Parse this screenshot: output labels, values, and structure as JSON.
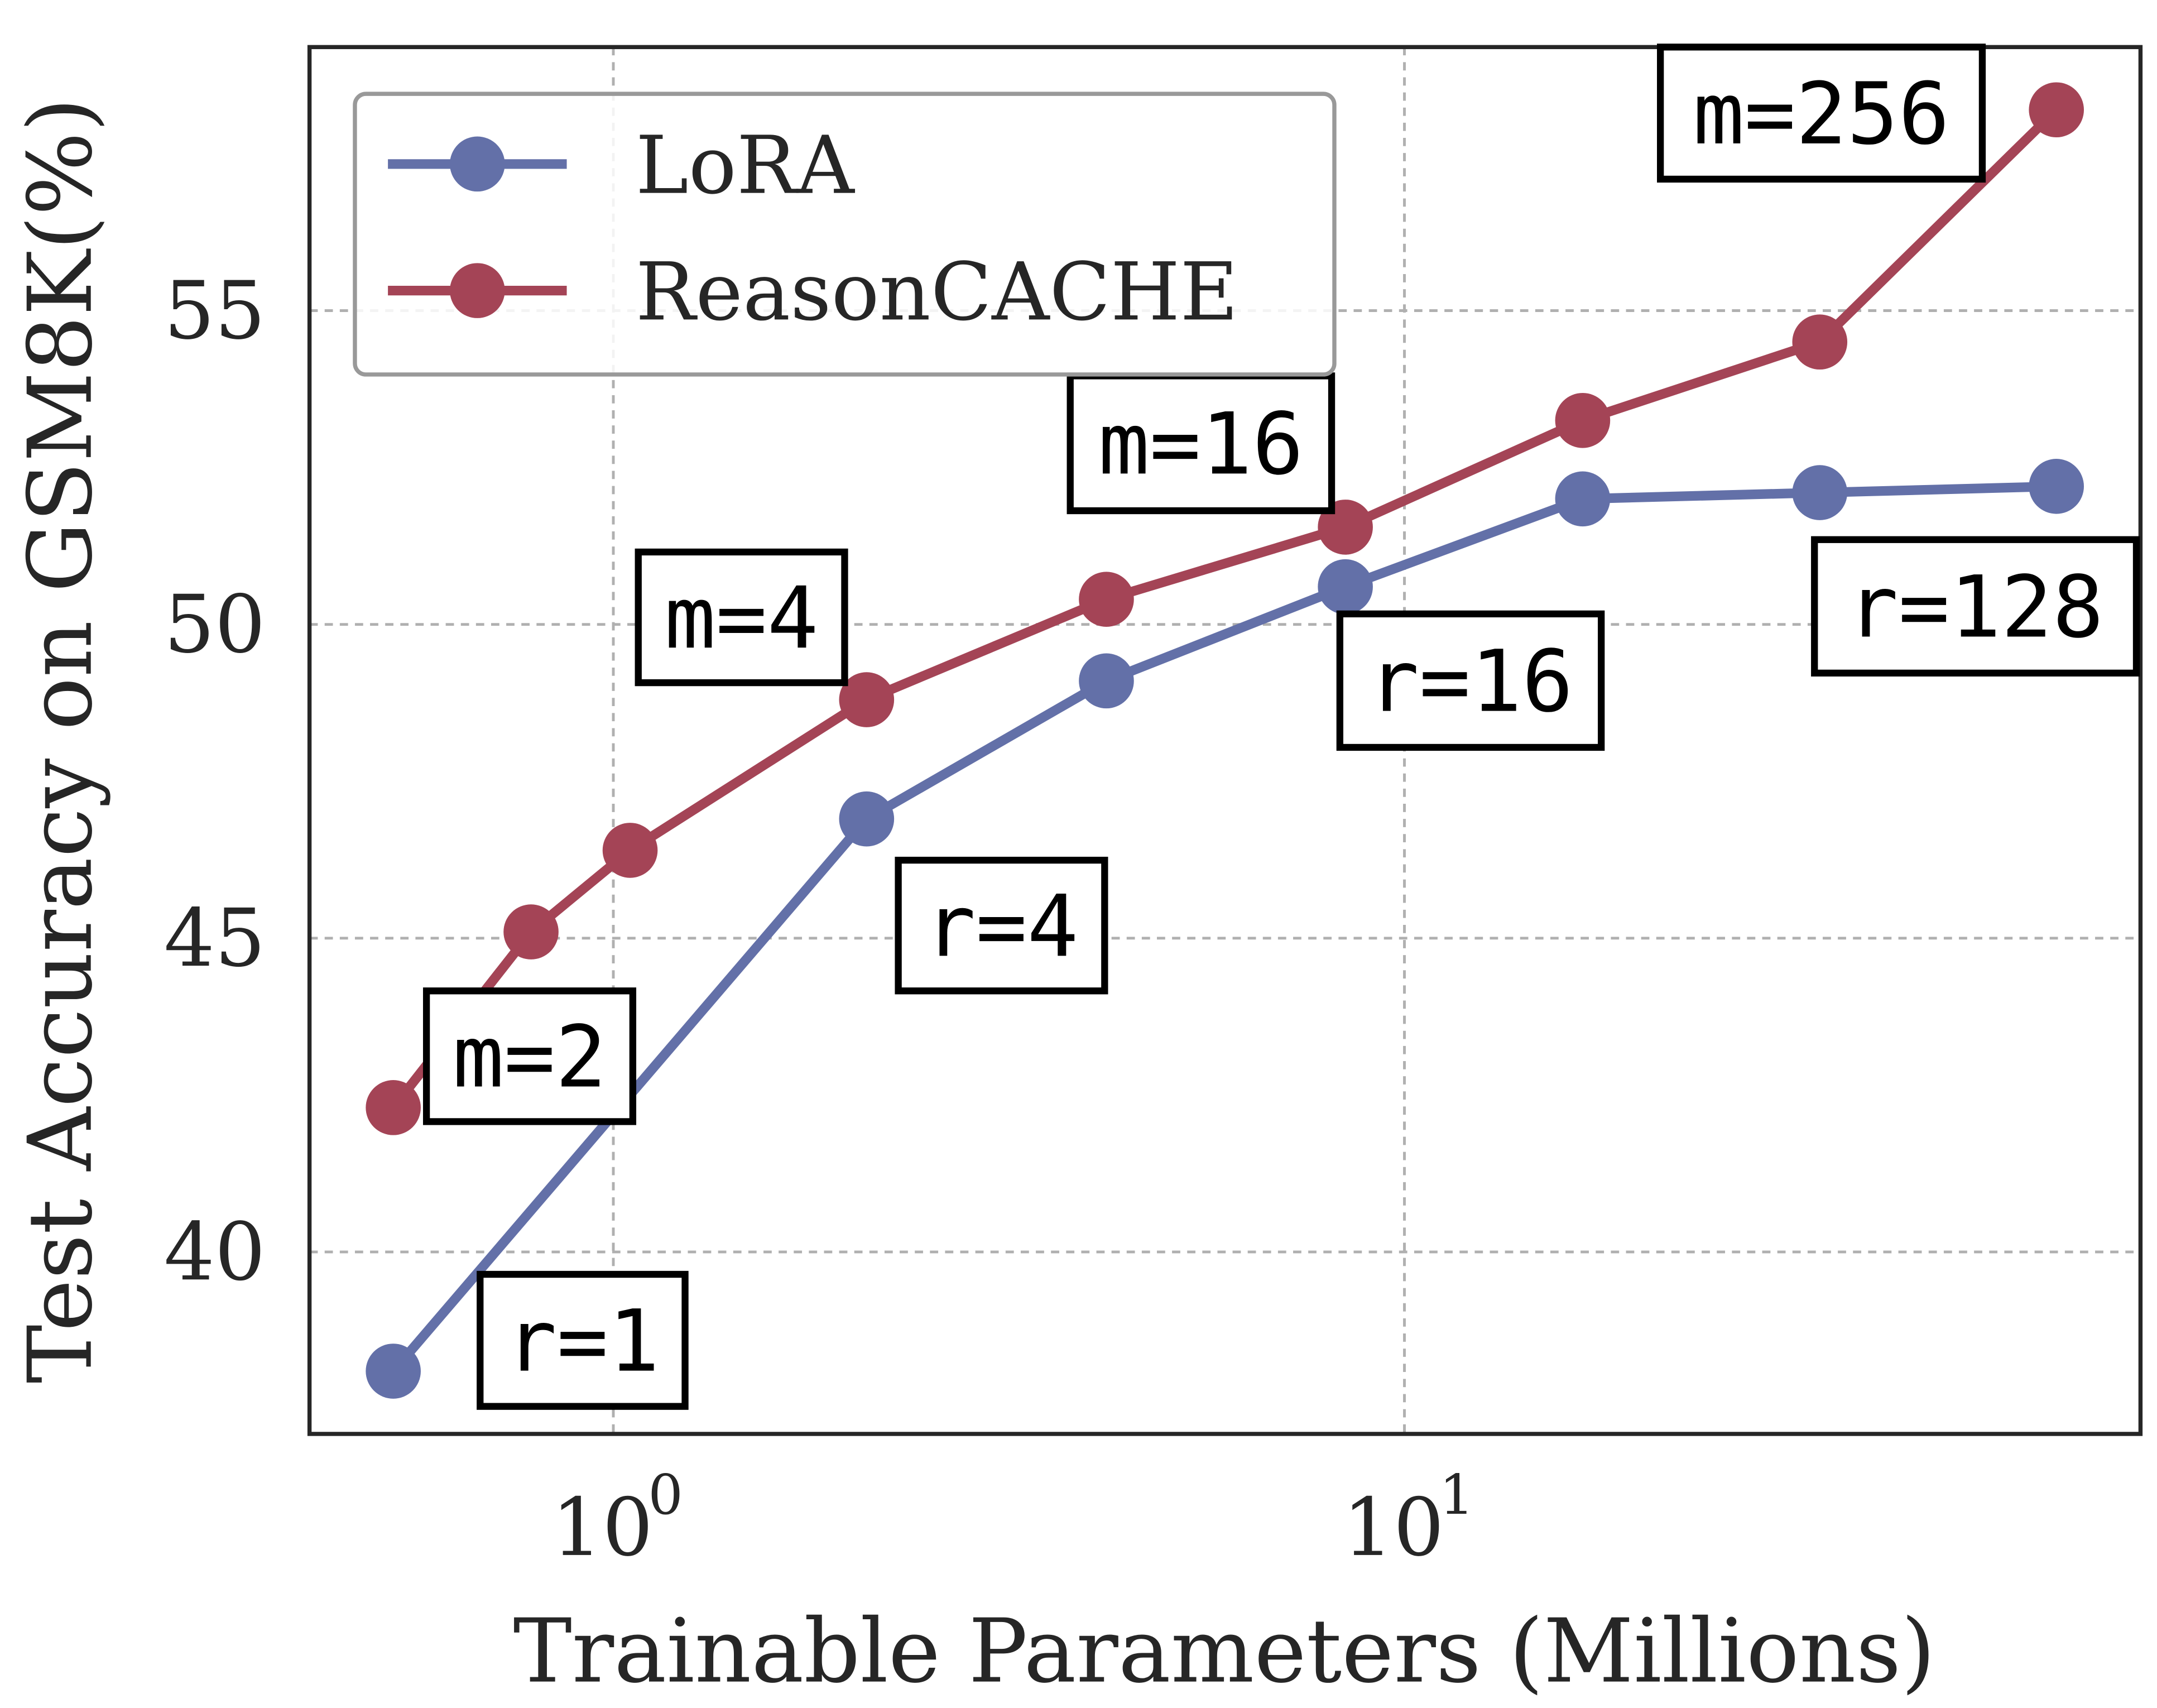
{
  "chart_data": {
    "type": "line",
    "xlabel": "Trainable Parameters (Millions)",
    "ylabel": "Test Accuracy on GSM8K(%)",
    "xscale": "log",
    "xlim": [
      0.413,
      85.2
    ],
    "ylim": [
      37.1,
      59.2
    ],
    "xticks": [
      {
        "value": 1,
        "label": "10",
        "exp": "0"
      },
      {
        "value": 10,
        "label": "10",
        "exp": "1"
      }
    ],
    "yticks": [
      40,
      45,
      50,
      55
    ],
    "grid": true,
    "legend": "top-left",
    "series": [
      {
        "name": "LoRA",
        "color": "#6370a8",
        "x": [
          0.527,
          2.09,
          4.2,
          8.42,
          16.8,
          33.5,
          66.7
        ],
        "y": [
          38.1,
          46.9,
          49.1,
          50.6,
          52.0,
          52.1,
          52.2
        ]
      },
      {
        "name": "ReasonCACHE",
        "color": "#a44456",
        "x": [
          0.527,
          0.787,
          1.05,
          2.09,
          4.2,
          8.42,
          16.8,
          33.5,
          66.7
        ],
        "y": [
          42.3,
          45.1,
          46.4,
          48.8,
          50.4,
          51.55,
          53.25,
          54.5,
          58.2
        ]
      }
    ],
    "annotations": [
      "m=256",
      "m=16",
      "m=4",
      "m=2",
      "r=1",
      "r=4",
      "r=16",
      "r=128"
    ]
  }
}
